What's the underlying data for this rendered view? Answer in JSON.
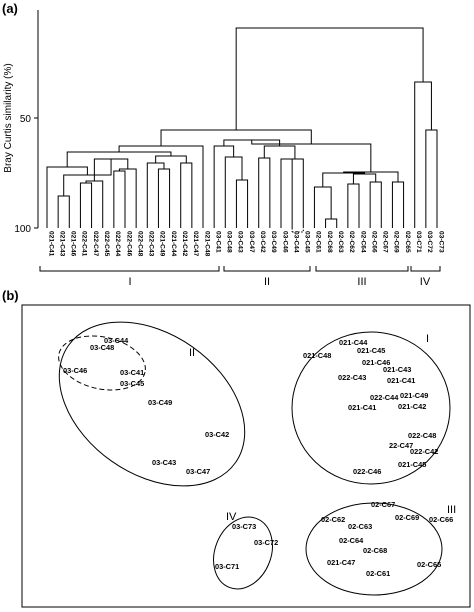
{
  "panels": {
    "a": "(a)",
    "b": "(b)"
  },
  "dendrogram": {
    "ylabel": "Bray Curtis similarity (%)",
    "yticks": [
      "50",
      "100"
    ],
    "leaves": [
      "021-C41",
      "021-C43",
      "021-C46",
      "022-C41",
      "022-C47",
      "022-C45",
      "022-C44",
      "022-C46",
      "022-C48",
      "022-C43",
      "021-C49",
      "021-C44",
      "021-C42",
      "021-C47",
      "021-C48",
      "03-C41",
      "03-C48",
      "03-C43",
      "03-C47",
      "03-C42",
      "03-C49",
      "03-C46",
      "03-C44",
      "03-C45",
      "02-C61",
      "02-C68",
      "02-C63",
      "02-C62",
      "02-C64",
      "02-C66",
      "02-C67",
      "02-C69",
      "02-C65",
      "03-C71",
      "03-C72",
      "03-C73"
    ],
    "groups": [
      "I",
      "II",
      "III",
      "IV"
    ]
  },
  "ordination": {
    "groups": [
      "II",
      "I",
      "IV",
      "III"
    ],
    "points": [
      {
        "label": "03-C48"
      },
      {
        "label": "03-C44"
      },
      {
        "label": "03-C46"
      },
      {
        "label": "03-C41"
      },
      {
        "label": "03-C45"
      },
      {
        "label": "03-C49"
      },
      {
        "label": "03-C42"
      },
      {
        "label": "03-C43"
      },
      {
        "label": "03-C47"
      },
      {
        "label": "021-C44"
      },
      {
        "label": "021-C45"
      },
      {
        "label": "021-C48"
      },
      {
        "label": "021-C46"
      },
      {
        "label": "021-C43"
      },
      {
        "label": "022-C43"
      },
      {
        "label": "021-C41"
      },
      {
        "label": "022-C44"
      },
      {
        "label": "021-C49"
      },
      {
        "label": "021-C41"
      },
      {
        "label": "021-C42"
      },
      {
        "label": "022-C48"
      },
      {
        "label": "22-C47"
      },
      {
        "label": "022-C42"
      },
      {
        "label": "021-C45"
      },
      {
        "label": "022-C46"
      },
      {
        "label": "03-C73"
      },
      {
        "label": "03-C72"
      },
      {
        "label": "03-C71"
      },
      {
        "label": "02-C67"
      },
      {
        "label": "02-C62"
      },
      {
        "label": "02-C69"
      },
      {
        "label": "02-C66"
      },
      {
        "label": "02-C63"
      },
      {
        "label": "02-C64"
      },
      {
        "label": "02-C68"
      },
      {
        "label": "021-C47"
      },
      {
        "label": "02-C65"
      },
      {
        "label": "02-C61"
      }
    ]
  }
}
